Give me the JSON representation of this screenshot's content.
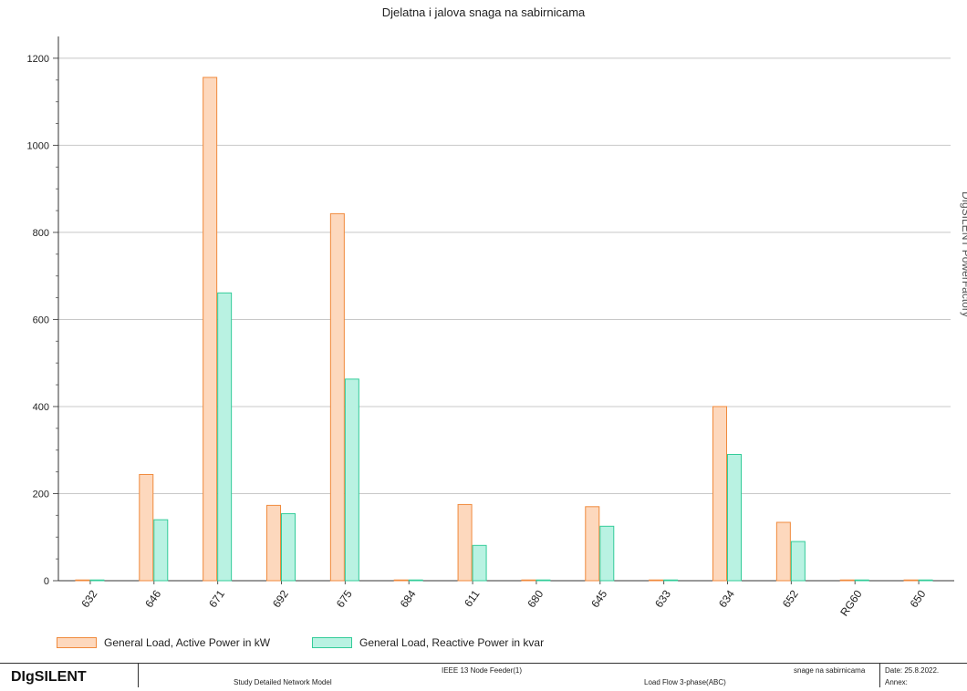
{
  "chart_data": {
    "type": "bar",
    "title": "Djelatna i jalova snaga na sabirnicama",
    "categories": [
      "632",
      "646",
      "671",
      "692",
      "675",
      "684",
      "611",
      "680",
      "645",
      "633",
      "634",
      "652",
      "RG60",
      "650"
    ],
    "series": [
      {
        "name": "General Load, Active Power in kW",
        "values": [
          0,
          244,
          1156,
          173,
          843,
          0,
          175,
          0,
          170,
          0,
          400,
          134,
          0,
          0
        ],
        "color": "#f08a3c",
        "fill": "#fdd8bd"
      },
      {
        "name": "General Load, Reactive Power in kvar",
        "values": [
          0,
          140,
          661,
          154,
          463,
          0,
          81,
          0,
          125,
          0,
          290,
          90,
          0,
          0
        ],
        "color": "#33cc99",
        "fill": "#b9f2e2"
      }
    ],
    "yticks": [
      0,
      200,
      400,
      600,
      800,
      1000,
      1200
    ],
    "ylim": [
      0,
      1250
    ],
    "grid": true,
    "legend_position": "bottom-left",
    "xlabel": "",
    "ylabel": ""
  },
  "side_label": "DIgSILENT PowerFactory",
  "footer": {
    "brand": "DIgSILENT",
    "project": "IEEE 13 Node Feeder(1)",
    "study": "Study Detailed Network Model",
    "calc": "Load Flow 3-phase(ABC)",
    "page": "snage na sabirnicama",
    "date": "Date: 25.8.2022.",
    "annex": "Annex:"
  }
}
